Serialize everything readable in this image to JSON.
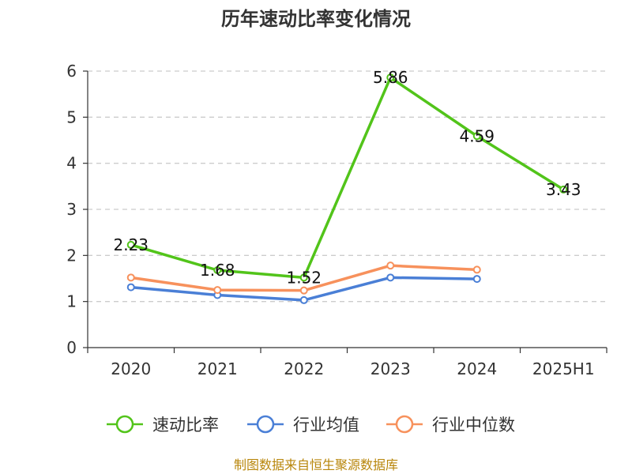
{
  "chart_data": {
    "type": "line",
    "title": "历年速动比率变化情况",
    "categories": [
      "2020",
      "2021",
      "2022",
      "2023",
      "2024",
      "2025H1"
    ],
    "ylim": [
      0,
      6
    ],
    "yticks": [
      "0",
      "1",
      "2",
      "3",
      "4",
      "5",
      "6"
    ],
    "grid": true,
    "legend_position": "bottom",
    "series": [
      {
        "name": "速动比率",
        "color": "#52c41a",
        "values": [
          2.23,
          1.68,
          1.52,
          5.86,
          4.59,
          3.43
        ],
        "labels": [
          "2.23",
          "1.68",
          "1.52",
          "5.86",
          "4.59",
          "3.43"
        ]
      },
      {
        "name": "行业均值",
        "color": "#4a7fd6",
        "values": [
          1.31,
          1.14,
          1.03,
          1.52,
          1.49,
          null
        ]
      },
      {
        "name": "行业中位数",
        "color": "#f7915c",
        "values": [
          1.52,
          1.25,
          1.24,
          1.78,
          1.69,
          null
        ]
      }
    ]
  },
  "source": "制图数据来自恒生聚源数据库"
}
